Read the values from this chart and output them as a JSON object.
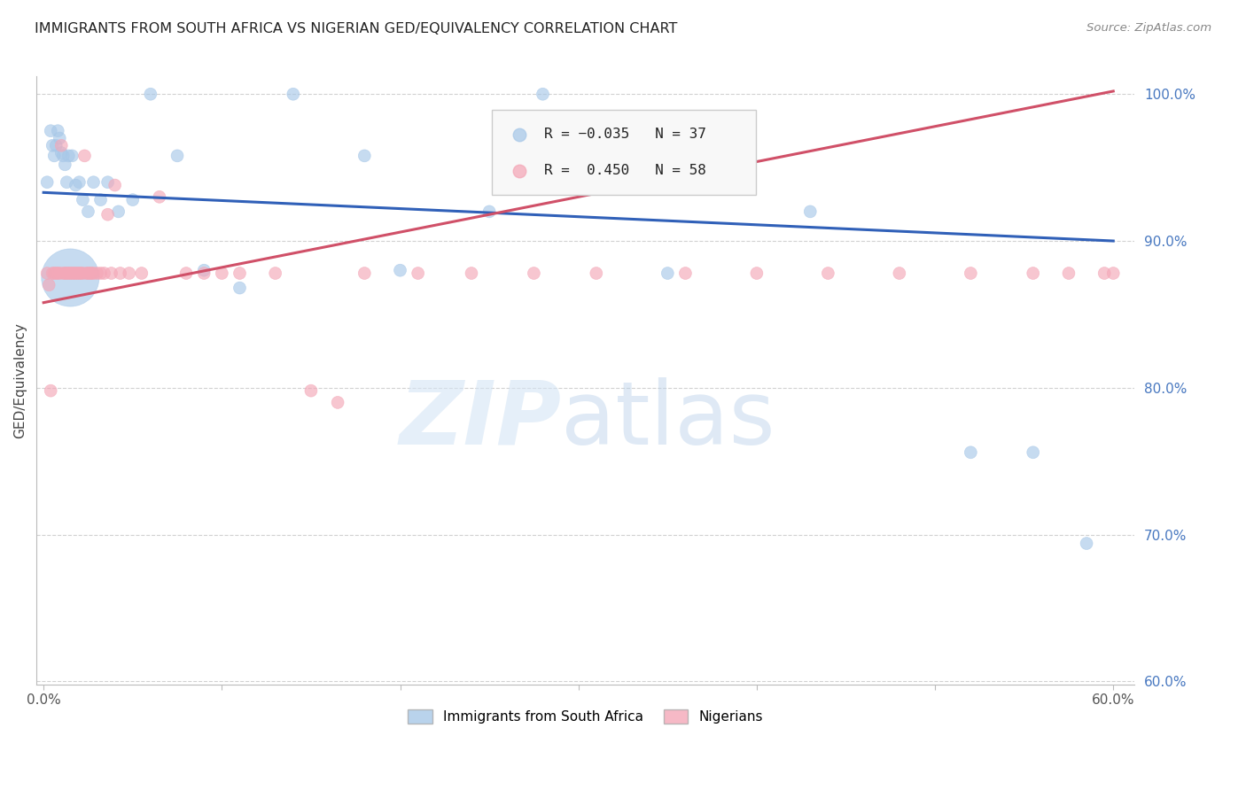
{
  "title": "IMMIGRANTS FROM SOUTH AFRICA VS NIGERIAN GED/EQUIVALENCY CORRELATION CHART",
  "source": "Source: ZipAtlas.com",
  "ylabel": "GED/Equivalency",
  "legend_label_blue": "Immigrants from South Africa",
  "legend_label_pink": "Nigerians",
  "r_blue": "-0.035",
  "n_blue": "37",
  "r_pink": "0.450",
  "n_pink": "58",
  "color_blue": "#a8c8e8",
  "color_pink": "#f4a8b8",
  "line_color_blue": "#3060b8",
  "line_color_pink": "#d05068",
  "background_color": "#ffffff",
  "blue_x": [
    0.002,
    0.004,
    0.005,
    0.006,
    0.007,
    0.008,
    0.009,
    0.01,
    0.011,
    0.012,
    0.013,
    0.014,
    0.015,
    0.016,
    0.018,
    0.02,
    0.022,
    0.025,
    0.028,
    0.032,
    0.036,
    0.042,
    0.05,
    0.06,
    0.075,
    0.09,
    0.11,
    0.14,
    0.18,
    0.2,
    0.25,
    0.28,
    0.35,
    0.43,
    0.52,
    0.555,
    0.585
  ],
  "blue_y": [
    0.94,
    0.975,
    0.965,
    0.958,
    0.965,
    0.975,
    0.97,
    0.96,
    0.958,
    0.952,
    0.94,
    0.958,
    0.875,
    0.958,
    0.938,
    0.94,
    0.928,
    0.92,
    0.94,
    0.928,
    0.94,
    0.92,
    0.928,
    1.0,
    0.958,
    0.88,
    0.868,
    1.0,
    0.958,
    0.88,
    0.92,
    1.0,
    0.878,
    0.92,
    0.756,
    0.756,
    0.694
  ],
  "blue_sizes": [
    100,
    100,
    100,
    100,
    100,
    100,
    100,
    100,
    100,
    100,
    100,
    100,
    2200,
    100,
    100,
    100,
    100,
    100,
    100,
    100,
    100,
    100,
    100,
    100,
    100,
    100,
    100,
    100,
    100,
    100,
    100,
    100,
    100,
    100,
    100,
    100,
    100
  ],
  "pink_x": [
    0.002,
    0.003,
    0.004,
    0.005,
    0.006,
    0.007,
    0.008,
    0.009,
    0.01,
    0.011,
    0.012,
    0.013,
    0.014,
    0.015,
    0.016,
    0.017,
    0.018,
    0.019,
    0.02,
    0.021,
    0.022,
    0.023,
    0.024,
    0.025,
    0.026,
    0.027,
    0.028,
    0.03,
    0.032,
    0.034,
    0.036,
    0.038,
    0.04,
    0.043,
    0.048,
    0.055,
    0.065,
    0.08,
    0.09,
    0.1,
    0.11,
    0.13,
    0.15,
    0.165,
    0.18,
    0.21,
    0.24,
    0.275,
    0.31,
    0.36,
    0.4,
    0.44,
    0.48,
    0.52,
    0.555,
    0.575,
    0.595,
    0.6
  ],
  "pink_y": [
    0.878,
    0.87,
    0.798,
    0.878,
    0.878,
    0.878,
    0.878,
    0.878,
    0.965,
    0.878,
    0.878,
    0.878,
    0.878,
    0.878,
    0.878,
    0.878,
    0.878,
    0.878,
    0.878,
    0.878,
    0.878,
    0.958,
    0.878,
    0.878,
    0.878,
    0.878,
    0.878,
    0.878,
    0.878,
    0.878,
    0.918,
    0.878,
    0.938,
    0.878,
    0.878,
    0.878,
    0.93,
    0.878,
    0.878,
    0.878,
    0.878,
    0.878,
    0.798,
    0.79,
    0.878,
    0.878,
    0.878,
    0.878,
    0.878,
    0.878,
    0.878,
    0.878,
    0.878,
    0.878,
    0.878,
    0.878,
    0.878,
    0.878
  ],
  "pink_sizes": [
    100,
    100,
    100,
    100,
    100,
    100,
    100,
    100,
    100,
    100,
    100,
    100,
    100,
    100,
    100,
    100,
    100,
    100,
    100,
    100,
    100,
    100,
    100,
    100,
    100,
    100,
    100,
    100,
    100,
    100,
    100,
    100,
    100,
    100,
    100,
    100,
    100,
    100,
    100,
    100,
    100,
    100,
    100,
    100,
    100,
    100,
    100,
    100,
    100,
    100,
    100,
    100,
    100,
    100,
    100,
    100,
    100,
    100
  ]
}
